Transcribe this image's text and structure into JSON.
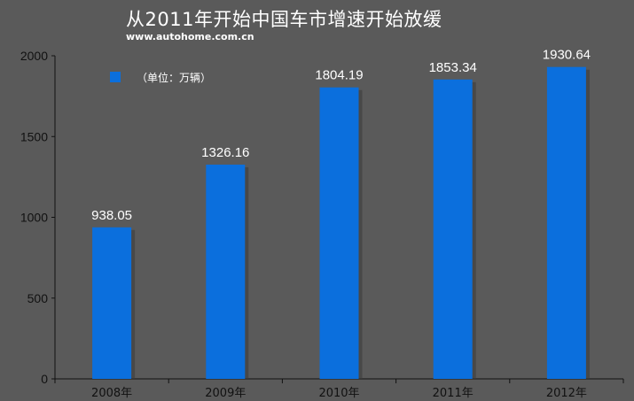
{
  "header": {
    "title": "从2011年开始中国车市增速开始放缓",
    "source": "www.autohome.com.cn"
  },
  "colors": {
    "background": "#5a5a5a",
    "bar": "#0b6fdd",
    "bar_shadow": "#3c3c3c",
    "text": "#ffffff",
    "axis_text": "#111111"
  },
  "chart_data": {
    "type": "bar",
    "categories": [
      "2008年",
      "2009年",
      "2010年",
      "2011年",
      "2012年"
    ],
    "values": [
      938.05,
      1326.16,
      1804.19,
      1853.34,
      1930.64
    ],
    "value_labels": [
      "938.05",
      "1326.16",
      "1804.19",
      "1853.34",
      "1930.64"
    ],
    "title": "从2011年开始中国车市增速开始放缓",
    "legend": {
      "label": "（单位：万辆）",
      "placement": "top-left"
    },
    "xlabel": "",
    "ylabel": "",
    "ylim": [
      0,
      2000
    ],
    "yticks": [
      0,
      500,
      1000,
      1500,
      2000
    ],
    "grid": false
  }
}
